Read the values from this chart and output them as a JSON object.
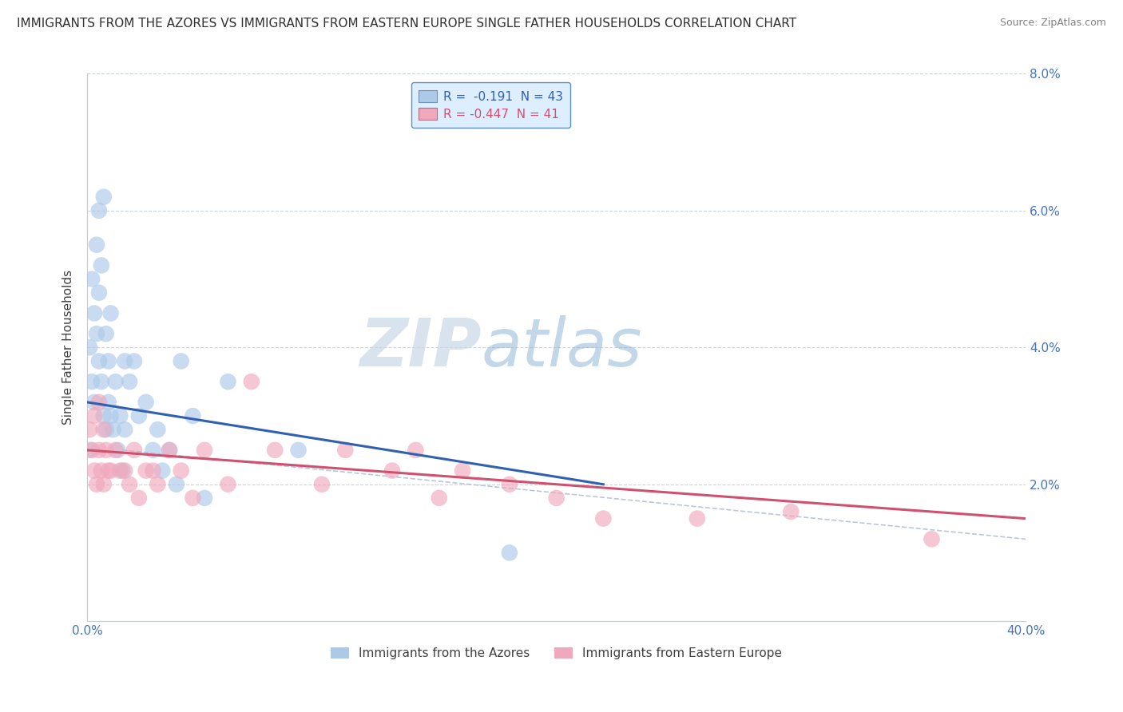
{
  "title": "IMMIGRANTS FROM THE AZORES VS IMMIGRANTS FROM EASTERN EUROPE SINGLE FATHER HOUSEHOLDS CORRELATION CHART",
  "source": "Source: ZipAtlas.com",
  "ylabel": "Single Father Households",
  "x_min": 0.0,
  "x_max": 0.4,
  "y_min": 0.0,
  "y_max": 0.08,
  "series_azores": {
    "name": "Immigrants from the Azores",
    "color": "#adc9e8",
    "R": -0.191,
    "N": 43,
    "x": [
      0.001,
      0.001,
      0.002,
      0.002,
      0.003,
      0.003,
      0.004,
      0.004,
      0.005,
      0.005,
      0.005,
      0.006,
      0.006,
      0.007,
      0.007,
      0.008,
      0.008,
      0.009,
      0.009,
      0.01,
      0.01,
      0.011,
      0.012,
      0.013,
      0.014,
      0.015,
      0.016,
      0.016,
      0.018,
      0.02,
      0.022,
      0.025,
      0.028,
      0.03,
      0.032,
      0.035,
      0.038,
      0.04,
      0.045,
      0.05,
      0.06,
      0.09,
      0.18
    ],
    "y": [
      0.025,
      0.04,
      0.035,
      0.05,
      0.032,
      0.045,
      0.042,
      0.055,
      0.038,
      0.048,
      0.06,
      0.035,
      0.052,
      0.03,
      0.062,
      0.028,
      0.042,
      0.032,
      0.038,
      0.03,
      0.045,
      0.028,
      0.035,
      0.025,
      0.03,
      0.022,
      0.028,
      0.038,
      0.035,
      0.038,
      0.03,
      0.032,
      0.025,
      0.028,
      0.022,
      0.025,
      0.02,
      0.038,
      0.03,
      0.018,
      0.035,
      0.025,
      0.01
    ]
  },
  "series_eastern": {
    "name": "Immigrants from Eastern Europe",
    "color": "#f0a8bc",
    "R": -0.447,
    "N": 41,
    "x": [
      0.001,
      0.002,
      0.003,
      0.003,
      0.004,
      0.005,
      0.005,
      0.006,
      0.007,
      0.007,
      0.008,
      0.009,
      0.01,
      0.012,
      0.014,
      0.016,
      0.018,
      0.02,
      0.022,
      0.025,
      0.028,
      0.03,
      0.035,
      0.04,
      0.045,
      0.05,
      0.06,
      0.07,
      0.08,
      0.1,
      0.11,
      0.13,
      0.14,
      0.15,
      0.16,
      0.18,
      0.2,
      0.22,
      0.26,
      0.3,
      0.36
    ],
    "y": [
      0.028,
      0.025,
      0.022,
      0.03,
      0.02,
      0.025,
      0.032,
      0.022,
      0.02,
      0.028,
      0.025,
      0.022,
      0.022,
      0.025,
      0.022,
      0.022,
      0.02,
      0.025,
      0.018,
      0.022,
      0.022,
      0.02,
      0.025,
      0.022,
      0.018,
      0.025,
      0.02,
      0.035,
      0.025,
      0.02,
      0.025,
      0.022,
      0.025,
      0.018,
      0.022,
      0.02,
      0.018,
      0.015,
      0.015,
      0.016,
      0.012
    ]
  },
  "trend_azores_color": "#3060b0",
  "trend_eastern_color": "#d05070",
  "diag_line_color": "#b8c8d8",
  "legend_box_facecolor": "#ddeeff",
  "legend_border_color": "#6090c0",
  "watermark_zip_color": "#c8d8e8",
  "watermark_atlas_color": "#a8c8e0",
  "background_color": "#ffffff",
  "grid_color": "#c8d4dc",
  "title_color": "#303030",
  "tick_color": "#4472c4"
}
